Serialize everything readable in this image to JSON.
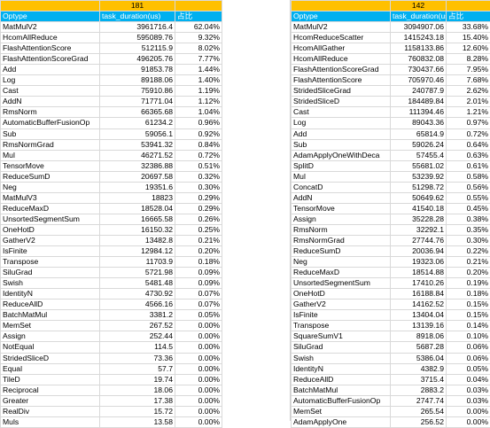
{
  "left": {
    "total": "181",
    "headers": [
      "Optype",
      "task_duration(us)",
      "占比"
    ],
    "rows": [
      [
        "MatMulV2",
        "3961716.4",
        "62.04%"
      ],
      [
        "HcomAllReduce",
        "595089.76",
        "9.32%"
      ],
      [
        "FlashAttentionScore",
        "512115.9",
        "8.02%"
      ],
      [
        "FlashAttentionScoreGrad",
        "496205.76",
        "7.77%"
      ],
      [
        "Add",
        "91853.78",
        "1.44%"
      ],
      [
        "Log",
        "89188.06",
        "1.40%"
      ],
      [
        "Cast",
        "75910.86",
        "1.19%"
      ],
      [
        "AddN",
        "71771.04",
        "1.12%"
      ],
      [
        "RmsNorm",
        "66365.68",
        "1.04%"
      ],
      [
        "AutomaticBufferFusionOp",
        "61234.2",
        "0.96%"
      ],
      [
        "Sub",
        "59056.1",
        "0.92%"
      ],
      [
        "RmsNormGrad",
        "53941.32",
        "0.84%"
      ],
      [
        "Mul",
        "46271.52",
        "0.72%"
      ],
      [
        "TensorMove",
        "32386.88",
        "0.51%"
      ],
      [
        "ReduceSumD",
        "20697.58",
        "0.32%"
      ],
      [
        "Neg",
        "19351.6",
        "0.30%"
      ],
      [
        "MatMulV3",
        "18823",
        "0.29%"
      ],
      [
        "ReduceMaxD",
        "18528.04",
        "0.29%"
      ],
      [
        "UnsortedSegmentSum",
        "16665.58",
        "0.26%"
      ],
      [
        "OneHotD",
        "16150.32",
        "0.25%"
      ],
      [
        "GatherV2",
        "13482.8",
        "0.21%"
      ],
      [
        "IsFinite",
        "12984.12",
        "0.20%"
      ],
      [
        "Transpose",
        "11703.9",
        "0.18%"
      ],
      [
        "SiluGrad",
        "5721.98",
        "0.09%"
      ],
      [
        "Swish",
        "5481.48",
        "0.09%"
      ],
      [
        "IdentityN",
        "4730.92",
        "0.07%"
      ],
      [
        "ReduceAllD",
        "4566.16",
        "0.07%"
      ],
      [
        "BatchMatMul",
        "3381.2",
        "0.05%"
      ],
      [
        "MemSet",
        "267.52",
        "0.00%"
      ],
      [
        "Assign",
        "252.44",
        "0.00%"
      ],
      [
        "NotEqual",
        "114.5",
        "0.00%"
      ],
      [
        "StridedSliceD",
        "73.36",
        "0.00%"
      ],
      [
        "Equal",
        "57.7",
        "0.00%"
      ],
      [
        "TileD",
        "19.74",
        "0.00%"
      ],
      [
        "Reciprocal",
        "18.06",
        "0.00%"
      ],
      [
        "Greater",
        "17.38",
        "0.00%"
      ],
      [
        "RealDiv",
        "15.72",
        "0.00%"
      ],
      [
        "Muls",
        "13.58",
        "0.00%"
      ]
    ]
  },
  "right": {
    "total": "142",
    "headers": [
      "Optype",
      "task_duration(us)",
      "占比"
    ],
    "rows": [
      [
        "MatMulV2",
        "3094907.06",
        "33.68%"
      ],
      [
        "HcomReduceScatter",
        "1415243.18",
        "15.40%"
      ],
      [
        "HcomAllGather",
        "1158133.86",
        "12.60%"
      ],
      [
        "HcomAllReduce",
        "760832.08",
        "8.28%"
      ],
      [
        "FlashAttentionScoreGrad",
        "730437.66",
        "7.95%"
      ],
      [
        "FlashAttentionScore",
        "705970.46",
        "7.68%"
      ],
      [
        "StridedSliceGrad",
        "240787.9",
        "2.62%"
      ],
      [
        "StridedSliceD",
        "184489.84",
        "2.01%"
      ],
      [
        "Cast",
        "111394.46",
        "1.21%"
      ],
      [
        "Log",
        "89043.36",
        "0.97%"
      ],
      [
        "Add",
        "65814.9",
        "0.72%"
      ],
      [
        "Sub",
        "59026.24",
        "0.64%"
      ],
      [
        "AdamApplyOneWithDeca",
        "57455.4",
        "0.63%"
      ],
      [
        "SplitD",
        "55681.02",
        "0.61%"
      ],
      [
        "Mul",
        "53239.92",
        "0.58%"
      ],
      [
        "ConcatD",
        "51298.72",
        "0.56%"
      ],
      [
        "AddN",
        "50649.62",
        "0.55%"
      ],
      [
        "TensorMove",
        "41540.18",
        "0.45%"
      ],
      [
        "Assign",
        "35228.28",
        "0.38%"
      ],
      [
        "RmsNorm",
        "32292.1",
        "0.35%"
      ],
      [
        "RmsNormGrad",
        "27744.76",
        "0.30%"
      ],
      [
        "ReduceSumD",
        "20036.94",
        "0.22%"
      ],
      [
        "Neg",
        "19323.06",
        "0.21%"
      ],
      [
        "ReduceMaxD",
        "18514.88",
        "0.20%"
      ],
      [
        "UnsortedSegmentSum",
        "17410.26",
        "0.19%"
      ],
      [
        "OneHotD",
        "16188.84",
        "0.18%"
      ],
      [
        "GatherV2",
        "14162.52",
        "0.15%"
      ],
      [
        "IsFinite",
        "13404.04",
        "0.15%"
      ],
      [
        "Transpose",
        "13139.16",
        "0.14%"
      ],
      [
        "SquareSumV1",
        "8918.06",
        "0.10%"
      ],
      [
        "SiluGrad",
        "5687.28",
        "0.06%"
      ],
      [
        "Swish",
        "5386.04",
        "0.06%"
      ],
      [
        "IdentityN",
        "4382.9",
        "0.05%"
      ],
      [
        "ReduceAllD",
        "3715.4",
        "0.04%"
      ],
      [
        "BatchMatMul",
        "2883.2",
        "0.03%"
      ],
      [
        "AutomaticBufferFusionOp",
        "2747.74",
        "0.03%"
      ],
      [
        "MemSet",
        "265.54",
        "0.00%"
      ],
      [
        "AdamApplyOne",
        "256.52",
        "0.00%"
      ]
    ]
  },
  "colors": {
    "total_bg": "#ffc000",
    "header_bg": "#00b0f0",
    "header_text": "#ffffff",
    "grid": "#d9d9d9"
  }
}
